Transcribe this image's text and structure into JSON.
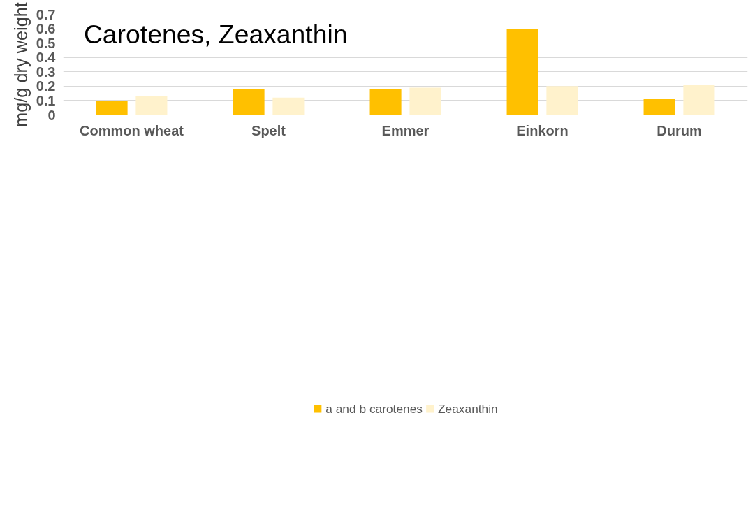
{
  "chart_data": {
    "type": "bar",
    "title": "Carotenes, Zeaxanthin",
    "ylabel": "mg/g dry weight",
    "categories": [
      "Common wheat",
      "Spelt",
      "Emmer",
      "Einkorn",
      "Durum"
    ],
    "series": [
      {
        "name": "a and b carotenes",
        "color": "#ffc000",
        "values": [
          0.1,
          0.18,
          0.18,
          0.6,
          0.11
        ]
      },
      {
        "name": "Zeaxanthin",
        "color": "#fff2cc",
        "values": [
          0.13,
          0.12,
          0.19,
          0.2,
          0.21
        ]
      }
    ],
    "ylim": [
      0,
      0.7
    ],
    "yticks": [
      {
        "value": 0,
        "label": "0"
      },
      0.1,
      0.2,
      0.3,
      0.4,
      0.5,
      0.6,
      0.7
    ],
    "grid": "y",
    "legend": "bottom"
  }
}
